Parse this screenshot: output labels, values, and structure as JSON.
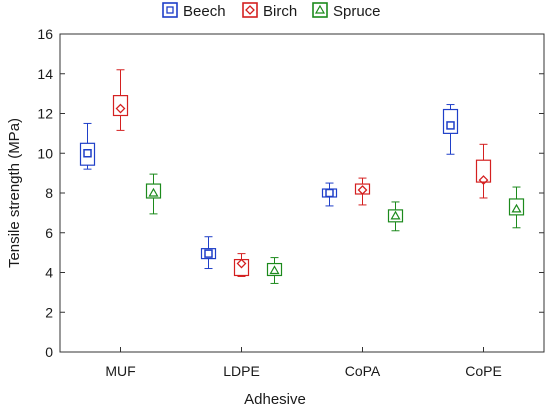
{
  "chart_data": {
    "type": "box",
    "title": "",
    "xlabel": "Adhesive",
    "ylabel": "Tensile strength (MPa)",
    "ylim": [
      0,
      16
    ],
    "yticks": [
      0,
      2,
      4,
      6,
      8,
      10,
      12,
      14,
      16
    ],
    "grid": false,
    "legend_position": "top",
    "categories": [
      "MUF",
      "LDPE",
      "CoPA",
      "CoPE"
    ],
    "series": [
      {
        "name": "Beech",
        "color": "#1f3fc8",
        "marker": "square",
        "stats": [
          {
            "min": 9.2,
            "q1": 9.4,
            "median": 10.0,
            "q3": 10.5,
            "max": 11.5
          },
          {
            "min": 4.2,
            "q1": 4.7,
            "median": 4.95,
            "q3": 5.2,
            "max": 5.8
          },
          {
            "min": 7.35,
            "q1": 7.8,
            "median": 8.0,
            "q3": 8.2,
            "max": 8.5
          },
          {
            "min": 9.95,
            "q1": 11.0,
            "median": 11.4,
            "q3": 12.2,
            "max": 12.45
          }
        ]
      },
      {
        "name": "Birch",
        "color": "#d42020",
        "marker": "diamond",
        "stats": [
          {
            "min": 11.15,
            "q1": 11.9,
            "median": 12.25,
            "q3": 12.9,
            "max": 14.2
          },
          {
            "min": 3.8,
            "q1": 3.85,
            "median": 4.45,
            "q3": 4.65,
            "max": 4.95
          },
          {
            "min": 7.4,
            "q1": 7.95,
            "median": 8.15,
            "q3": 8.45,
            "max": 8.75
          },
          {
            "min": 7.75,
            "q1": 8.55,
            "median": 8.65,
            "q3": 9.65,
            "max": 10.45
          }
        ]
      },
      {
        "name": "Spruce",
        "color": "#1c8a1c",
        "marker": "triangle",
        "stats": [
          {
            "min": 6.95,
            "q1": 7.75,
            "median": 8.0,
            "q3": 8.45,
            "max": 8.95
          },
          {
            "min": 3.45,
            "q1": 3.85,
            "median": 4.1,
            "q3": 4.45,
            "max": 4.75
          },
          {
            "min": 6.1,
            "q1": 6.55,
            "median": 6.85,
            "q3": 7.15,
            "max": 7.55
          },
          {
            "min": 6.25,
            "q1": 6.9,
            "median": 7.2,
            "q3": 7.7,
            "max": 8.3
          }
        ]
      }
    ]
  }
}
